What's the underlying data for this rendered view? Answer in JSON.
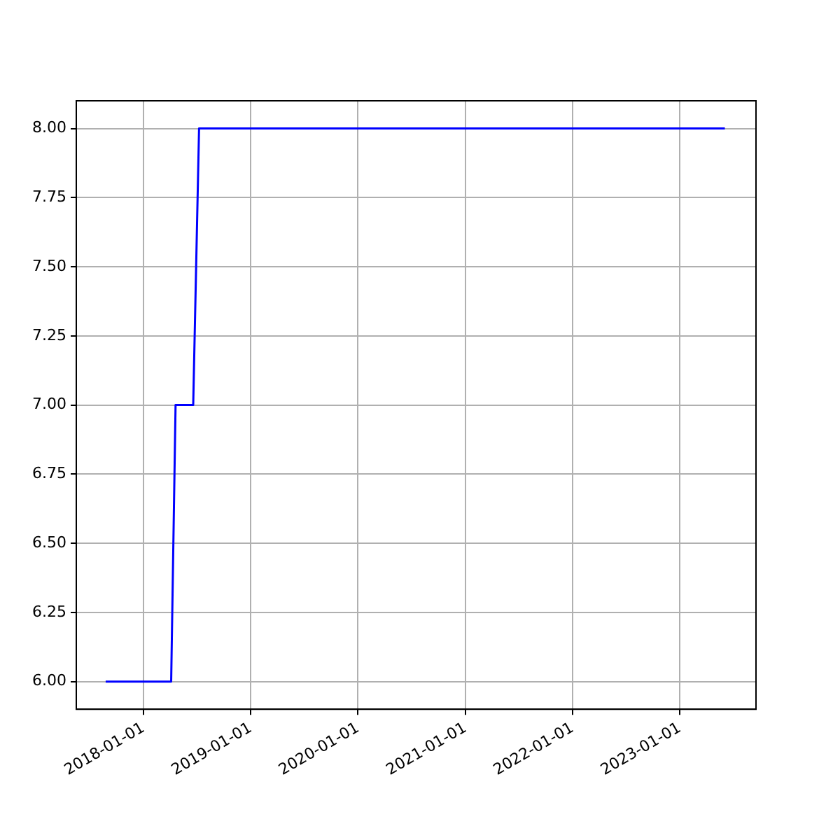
{
  "chart_data": {
    "type": "line",
    "x": [
      "2017-08-25",
      "2018-04-05",
      "2018-04-20",
      "2018-06-19",
      "2018-07-09",
      "2023-06-03"
    ],
    "series": [
      {
        "color": "#0000ff",
        "values": [
          6,
          6,
          7,
          7,
          8,
          8
        ]
      }
    ],
    "xlim": [
      "2017-05-17",
      "2023-09-17"
    ],
    "xticks": [
      {
        "value": "2018-01-01",
        "label": "2018-01-01"
      },
      {
        "value": "2019-01-01",
        "label": "2019-01-01"
      },
      {
        "value": "2020-01-01",
        "label": "2020-01-01"
      },
      {
        "value": "2021-01-01",
        "label": "2021-01-01"
      },
      {
        "value": "2022-01-01",
        "label": "2022-01-01"
      },
      {
        "value": "2023-01-01",
        "label": "2023-01-01"
      }
    ],
    "ylim": [
      5.9,
      8.1
    ],
    "yticks": [
      {
        "value": 6,
        "label": "6.00"
      },
      {
        "value": 6.25,
        "label": "6.25"
      },
      {
        "value": 6.5,
        "label": "6.50"
      },
      {
        "value": 6.75,
        "label": "6.75"
      },
      {
        "value": 7,
        "label": "7.00"
      },
      {
        "value": 7.25,
        "label": "7.25"
      },
      {
        "value": 7.5,
        "label": "7.50"
      },
      {
        "value": 7.75,
        "label": "7.75"
      },
      {
        "value": 8,
        "label": "8.00"
      }
    ],
    "grid": true,
    "legend": false,
    "marker": "none",
    "line_style": "solid"
  }
}
